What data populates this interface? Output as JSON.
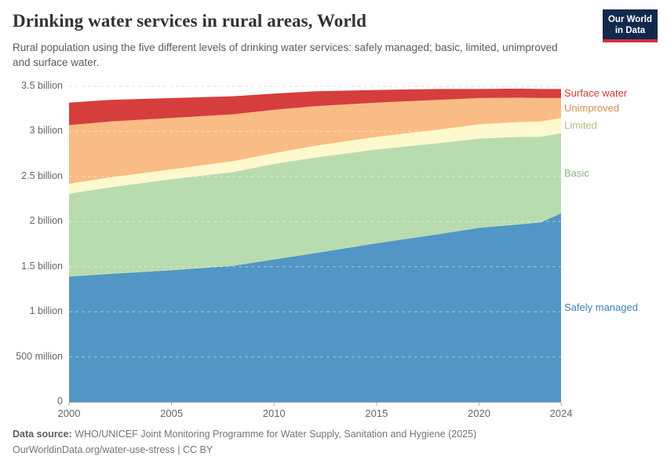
{
  "header": {
    "title": "Drinking water services in rural areas, World",
    "subtitle": "Rural population using the five different levels of drinking water services: safely managed; basic, limited, unimproved and surface water.",
    "logo": {
      "line1": "Our World",
      "line2": "in Data",
      "bg_color": "#12294e",
      "accent_color": "#d02e3d"
    }
  },
  "chart_data": {
    "type": "area",
    "stacked": true,
    "title": "Drinking water services in rural areas, World",
    "xlabel": "",
    "ylabel": "",
    "unit": "people",
    "xlim": [
      2000,
      2024
    ],
    "ylim": [
      0,
      3500000000
    ],
    "grid": true,
    "legend_position": "right",
    "x": [
      2000,
      2002,
      2005,
      2008,
      2010,
      2012,
      2015,
      2018,
      2020,
      2022,
      2023,
      2024
    ],
    "series": [
      {
        "name": "Safely managed",
        "color": "#5296c5",
        "label_color": "#3e81b4",
        "values_billion": [
          1.39,
          1.42,
          1.46,
          1.51,
          1.58,
          1.65,
          1.76,
          1.86,
          1.93,
          1.97,
          1.99,
          2.09
        ]
      },
      {
        "name": "Basic",
        "color": "#b8dcb0",
        "label_color": "#85ba7f",
        "values_billion": [
          0.92,
          0.96,
          1.01,
          1.04,
          1.06,
          1.06,
          1.04,
          1.01,
          0.99,
          0.97,
          0.95,
          0.89
        ]
      },
      {
        "name": "Limited",
        "color": "#fdf9cd",
        "label_color": "#b9bd85",
        "values_billion": [
          0.11,
          0.11,
          0.11,
          0.12,
          0.12,
          0.13,
          0.14,
          0.15,
          0.16,
          0.165,
          0.17,
          0.17
        ]
      },
      {
        "name": "Unimproved",
        "color": "#f9bc84",
        "label_color": "#d28e52",
        "values_billion": [
          0.65,
          0.62,
          0.57,
          0.52,
          0.48,
          0.44,
          0.38,
          0.33,
          0.29,
          0.27,
          0.26,
          0.22
        ]
      },
      {
        "name": "Surface water",
        "color": "#d63e3d",
        "label_color": "#cc3c3c",
        "values_billion": [
          0.25,
          0.24,
          0.22,
          0.2,
          0.18,
          0.165,
          0.14,
          0.12,
          0.1,
          0.1,
          0.1,
          0.1
        ]
      }
    ],
    "y_ticks": [
      {
        "v": 3.5,
        "label": "3.5 billion"
      },
      {
        "v": 3.0,
        "label": "3 billion"
      },
      {
        "v": 2.5,
        "label": "2.5 billion"
      },
      {
        "v": 2.0,
        "label": "2 billion"
      },
      {
        "v": 1.5,
        "label": "1.5 billion"
      },
      {
        "v": 1.0,
        "label": "1 billion"
      },
      {
        "v": 0.5,
        "label": "500 million"
      },
      {
        "v": 0.0,
        "label": "0"
      }
    ],
    "x_ticks": [
      2000,
      2005,
      2010,
      2015,
      2020,
      2024
    ]
  },
  "footer": {
    "source_label": "Data source:",
    "source_text": " WHO/UNICEF Joint Monitoring Programme for Water Supply, Sanitation and Hygiene (2025)",
    "license_line": "OurWorldinData.org/water-use-stress | CC BY"
  }
}
